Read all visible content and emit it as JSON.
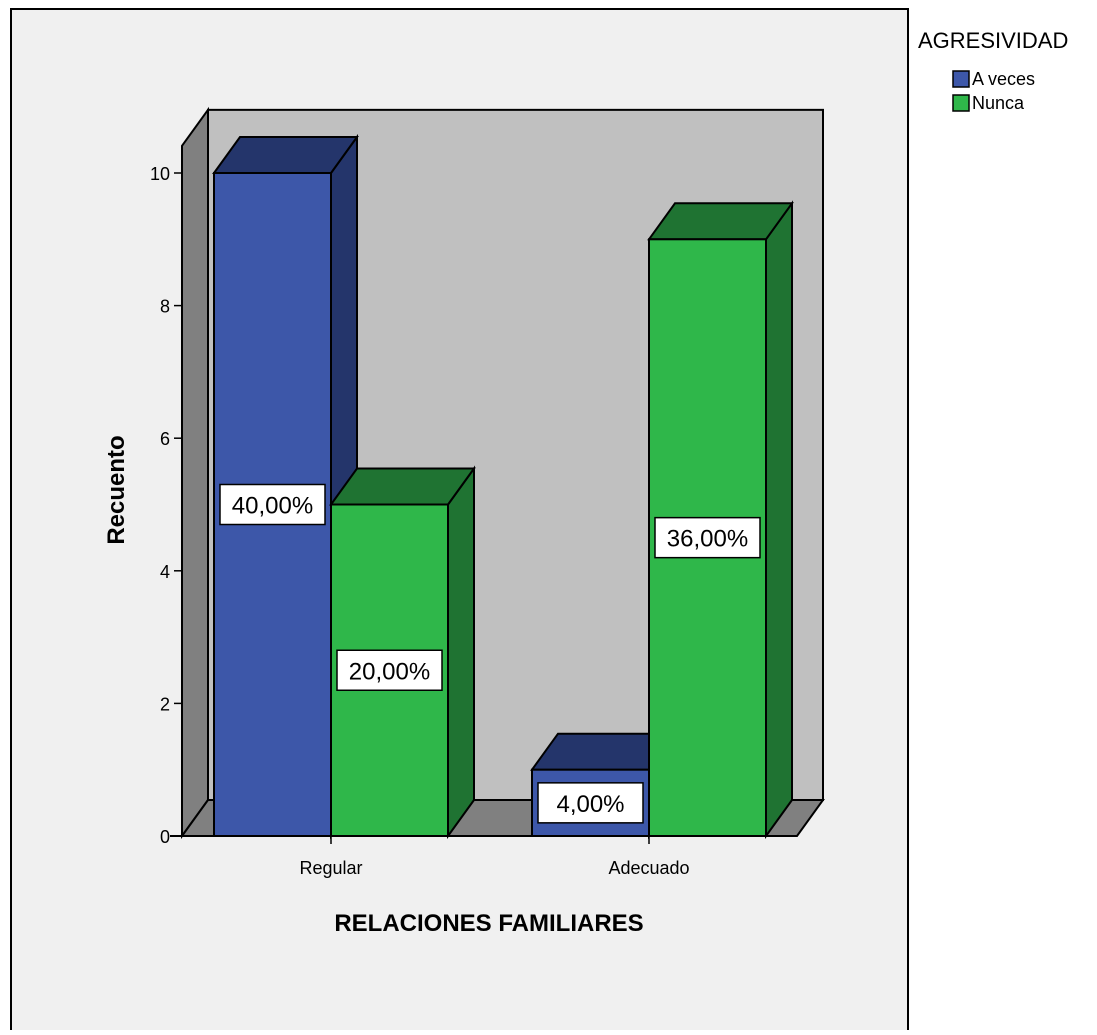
{
  "chart_data": {
    "type": "bar",
    "xlabel": "RELACIONES FAMILIARES",
    "ylabel": "Recuento",
    "categories": [
      "Regular",
      "Adecuado"
    ],
    "ylim": [
      0,
      10.5
    ],
    "yticks": [
      "0",
      "2",
      "4",
      "6",
      "8",
      "10"
    ],
    "legend": {
      "title": "AGRESIVIDAD",
      "placement": "top-right"
    },
    "series": [
      {
        "name": "A veces",
        "values": [
          10,
          1
        ],
        "labels": [
          "40,00%",
          "4,00%"
        ],
        "color": "#3d57a9",
        "side_color": "#24356b"
      },
      {
        "name": "Nunca",
        "values": [
          5,
          9
        ],
        "labels": [
          "20,00%",
          "36,00%"
        ],
        "color": "#2fb74a",
        "side_color": "#1f7332"
      }
    ],
    "colors": {
      "outer_background": "#f0f0f0",
      "plot_wall": "#c0c0c0",
      "plot_side_wall": "#808080"
    },
    "grid": false
  }
}
